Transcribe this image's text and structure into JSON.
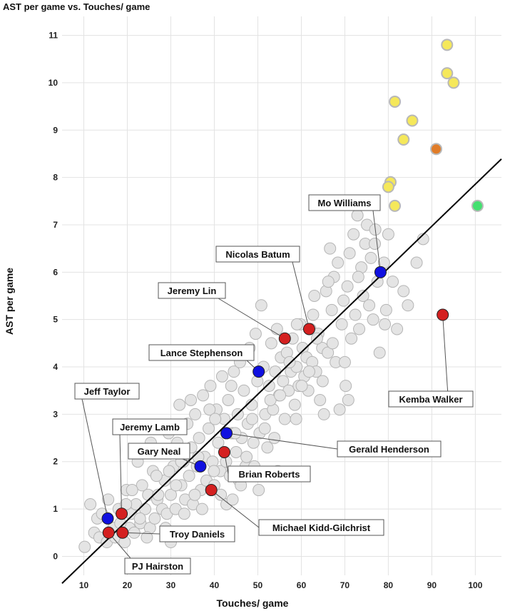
{
  "chart_data": {
    "type": "scatter",
    "title": "AST per game vs. Touches/ game",
    "xlabel": "Touches/ game",
    "ylabel": "AST per game",
    "xlim": [
      5,
      106
    ],
    "ylim": [
      -0.4,
      11.4
    ],
    "x_ticks": [
      10,
      20,
      30,
      40,
      50,
      60,
      70,
      80,
      90,
      100
    ],
    "y_ticks": [
      0,
      1,
      2,
      3,
      4,
      5,
      6,
      7,
      8,
      9,
      10,
      11
    ],
    "grid": true,
    "colors": {
      "background_points": "#e4e4e4",
      "background_stroke": "#b5b5b5",
      "blue": "#1010e0",
      "red": "#d42020",
      "yellow": "#f5e85a",
      "orange": "#e07c28",
      "green": "#44e070",
      "trend_line": "#000000"
    },
    "trend_line": {
      "from": [
        5.0,
        -0.57
      ],
      "to": [
        106.0,
        8.39
      ]
    },
    "background_points": [
      [
        10.2,
        0.2
      ],
      [
        11.5,
        1.1
      ],
      [
        12.4,
        0.5
      ],
      [
        13.1,
        0.8
      ],
      [
        13.6,
        0.4
      ],
      [
        14.2,
        0.9
      ],
      [
        15.3,
        0.3
      ],
      [
        15.6,
        1.2
      ],
      [
        16.8,
        0.6
      ],
      [
        17.2,
        0.4
      ],
      [
        18.0,
        1.0
      ],
      [
        19.4,
        0.3
      ],
      [
        19.8,
        1.4
      ],
      [
        20.5,
        0.6
      ],
      [
        20.9,
        0.9
      ],
      [
        21.6,
        0.5
      ],
      [
        22.0,
        1.1
      ],
      [
        22.4,
        2.0
      ],
      [
        23.0,
        0.7
      ],
      [
        23.4,
        1.5
      ],
      [
        24.1,
        1.0
      ],
      [
        24.8,
        1.3
      ],
      [
        25.2,
        0.6
      ],
      [
        25.9,
        1.8
      ],
      [
        26.3,
        0.8
      ],
      [
        26.9,
        1.2
      ],
      [
        27.5,
        2.2
      ],
      [
        28.0,
        1.0
      ],
      [
        28.6,
        1.6
      ],
      [
        29.1,
        0.9
      ],
      [
        29.5,
        2.6
      ],
      [
        30.0,
        1.3
      ],
      [
        30.6,
        1.9
      ],
      [
        31.1,
        1.0
      ],
      [
        31.5,
        2.4
      ],
      [
        32.0,
        3.2
      ],
      [
        32.4,
        1.5
      ],
      [
        32.9,
        2.0
      ],
      [
        33.3,
        1.2
      ],
      [
        33.8,
        2.8
      ],
      [
        34.2,
        1.7
      ],
      [
        34.7,
        2.3
      ],
      [
        35.1,
        1.1
      ],
      [
        35.6,
        3.0
      ],
      [
        36.0,
        1.9
      ],
      [
        36.5,
        2.5
      ],
      [
        36.9,
        1.4
      ],
      [
        37.4,
        3.4
      ],
      [
        37.8,
        2.1
      ],
      [
        38.2,
        1.6
      ],
      [
        38.7,
        2.7
      ],
      [
        39.1,
        3.6
      ],
      [
        39.6,
        2.0
      ],
      [
        40.0,
        1.5
      ],
      [
        40.5,
        3.1
      ],
      [
        40.9,
        2.4
      ],
      [
        41.4,
        1.8
      ],
      [
        41.8,
        3.8
      ],
      [
        42.3,
        2.9
      ],
      [
        42.7,
        2.0
      ],
      [
        43.2,
        3.3
      ],
      [
        43.6,
        1.7
      ],
      [
        44.1,
        2.6
      ],
      [
        44.5,
        3.9
      ],
      [
        45.0,
        2.2
      ],
      [
        45.4,
        3.0
      ],
      [
        45.9,
        4.1
      ],
      [
        46.3,
        2.5
      ],
      [
        46.8,
        3.5
      ],
      [
        47.2,
        1.9
      ],
      [
        47.7,
        2.8
      ],
      [
        48.1,
        4.4
      ],
      [
        48.6,
        3.2
      ],
      [
        49.0,
        2.4
      ],
      [
        49.5,
        4.7
      ],
      [
        49.9,
        3.7
      ],
      [
        50.4,
        2.6
      ],
      [
        50.8,
        5.3
      ],
      [
        51.3,
        4.0
      ],
      [
        51.7,
        3.0
      ],
      [
        52.2,
        2.3
      ],
      [
        52.6,
        3.6
      ],
      [
        53.1,
        4.5
      ],
      [
        53.5,
        3.1
      ],
      [
        54.0,
        3.9
      ],
      [
        54.4,
        4.8
      ],
      [
        54.9,
        3.4
      ],
      [
        55.3,
        4.2
      ],
      [
        55.8,
        3.7
      ],
      [
        56.2,
        2.9
      ],
      [
        56.7,
        4.3
      ],
      [
        57.1,
        3.5
      ],
      [
        57.6,
        3.9
      ],
      [
        58.0,
        4.6
      ],
      [
        58.5,
        3.2
      ],
      [
        58.9,
        4.0
      ],
      [
        59.4,
        3.6
      ],
      [
        59.8,
        4.9
      ],
      [
        60.3,
        4.4
      ],
      [
        60.7,
        3.8
      ],
      [
        61.2,
        4.2
      ],
      [
        61.6,
        3.5
      ],
      [
        62.1,
        4.8
      ],
      [
        62.5,
        4.1
      ],
      [
        63.0,
        5.5
      ],
      [
        63.4,
        3.9
      ],
      [
        63.9,
        4.7
      ],
      [
        64.3,
        3.3
      ],
      [
        64.8,
        4.4
      ],
      [
        65.2,
        3.0
      ],
      [
        65.7,
        5.6
      ],
      [
        66.1,
        4.3
      ],
      [
        66.6,
        6.5
      ],
      [
        67.0,
        5.2
      ],
      [
        67.5,
        5.9
      ],
      [
        67.9,
        4.1
      ],
      [
        68.4,
        6.2
      ],
      [
        68.8,
        3.1
      ],
      [
        69.3,
        4.9
      ],
      [
        69.7,
        5.4
      ],
      [
        70.2,
        3.6
      ],
      [
        70.6,
        5.7
      ],
      [
        71.1,
        6.4
      ],
      [
        71.5,
        4.6
      ],
      [
        72.0,
        6.8
      ],
      [
        72.4,
        5.1
      ],
      [
        72.9,
        7.2
      ],
      [
        73.3,
        4.8
      ],
      [
        73.8,
        6.1
      ],
      [
        74.2,
        5.5
      ],
      [
        74.7,
        6.6
      ],
      [
        75.1,
        7.0
      ],
      [
        75.6,
        5.3
      ],
      [
        76.0,
        6.3
      ],
      [
        76.5,
        5.0
      ],
      [
        77.0,
        6.9
      ],
      [
        77.5,
        5.8
      ],
      [
        78.0,
        4.3
      ],
      [
        79.0,
        6.2
      ],
      [
        79.5,
        5.2
      ],
      [
        80.0,
        6.8
      ],
      [
        81.0,
        5.8
      ],
      [
        82.0,
        4.8
      ],
      [
        83.5,
        5.6
      ],
      [
        84.5,
        5.3
      ],
      [
        86.5,
        6.2
      ],
      [
        88.0,
        6.7
      ],
      [
        70.8,
        3.3
      ],
      [
        64.9,
        3.7
      ],
      [
        59.0,
        4.9
      ],
      [
        21.1,
        1.4
      ],
      [
        26.7,
        1.7
      ],
      [
        31.2,
        1.5
      ],
      [
        35.5,
        1.3
      ],
      [
        39.9,
        1.8
      ],
      [
        44.8,
        2.6
      ],
      [
        48.7,
        2.9
      ],
      [
        52.9,
        3.3
      ],
      [
        57.3,
        4.1
      ],
      [
        61.8,
        3.9
      ],
      [
        24.5,
        0.4
      ],
      [
        28.8,
        0.6
      ],
      [
        33.1,
        0.9
      ],
      [
        37.2,
        1.0
      ],
      [
        41.5,
        1.3
      ],
      [
        45.7,
        1.6
      ],
      [
        49.2,
        1.9
      ],
      [
        53.8,
        2.5
      ],
      [
        30.0,
        0.3
      ],
      [
        18.4,
        0.7
      ],
      [
        34.6,
        3.3
      ],
      [
        38.9,
        3.1
      ],
      [
        43.9,
        3.6
      ],
      [
        47.4,
        2.1
      ],
      [
        51.6,
        2.7
      ],
      [
        55.1,
        3.4
      ],
      [
        60.1,
        3.6
      ],
      [
        63.6,
        4.6
      ],
      [
        67.2,
        4.5
      ],
      [
        66.2,
        5.8
      ],
      [
        58.8,
        2.9
      ],
      [
        62.7,
        5.1
      ],
      [
        70.0,
        4.1
      ],
      [
        73.1,
        5.9
      ],
      [
        76.9,
        6.6
      ],
      [
        79.2,
        4.9
      ],
      [
        32.4,
        2.0
      ],
      [
        36.3,
        2.1
      ],
      [
        40.2,
        2.9
      ],
      [
        42.8,
        1.1
      ],
      [
        27.1,
        1.3
      ],
      [
        22.9,
        0.8
      ],
      [
        19.7,
        1.1
      ],
      [
        25.4,
        2.4
      ],
      [
        29.6,
        1.8
      ],
      [
        46.1,
        1.5
      ],
      [
        50.2,
        1.4
      ],
      [
        54.6,
        1.8
      ],
      [
        38.0,
        0.5
      ],
      [
        44.2,
        1.2
      ]
    ],
    "yellow_points": [
      [
        93.5,
        10.8
      ],
      [
        93.5,
        10.2
      ],
      [
        95.0,
        10.0
      ],
      [
        81.5,
        9.6
      ],
      [
        85.5,
        9.2
      ],
      [
        83.5,
        8.8
      ],
      [
        80.5,
        7.9
      ],
      [
        80.0,
        7.8
      ],
      [
        81.5,
        7.4
      ]
    ],
    "orange_points": [
      [
        91.0,
        8.6
      ]
    ],
    "green_points": [
      [
        100.5,
        7.4
      ]
    ],
    "highlighted": [
      {
        "label": "Mo Williams",
        "x": 78.2,
        "y": 6.0,
        "color": "blue"
      },
      {
        "label": "Nicolas Batum",
        "x": 61.8,
        "y": 4.8,
        "color": "red"
      },
      {
        "label": "Jeremy Lin",
        "x": 56.2,
        "y": 4.6,
        "color": "red"
      },
      {
        "label": "Lance Stephenson",
        "x": 50.2,
        "y": 3.9,
        "color": "blue"
      },
      {
        "label": "Kemba Walker",
        "x": 92.5,
        "y": 5.1,
        "color": "red"
      },
      {
        "label": "Gerald Henderson",
        "x": 42.8,
        "y": 2.6,
        "color": "blue"
      },
      {
        "label": "Brian Roberts",
        "x": 42.3,
        "y": 2.2,
        "color": "red"
      },
      {
        "label": "Gary Neal",
        "x": 36.8,
        "y": 1.9,
        "color": "blue"
      },
      {
        "label": "Michael Kidd-Gilchrist",
        "x": 39.3,
        "y": 1.4,
        "color": "red"
      },
      {
        "label": "Jeff Taylor",
        "x": 15.5,
        "y": 0.8,
        "color": "blue"
      },
      {
        "label": "Jeremy Lamb",
        "x": 18.7,
        "y": 0.9,
        "color": "red"
      },
      {
        "label": "Troy Daniels",
        "x": 18.9,
        "y": 0.5,
        "color": "red"
      },
      {
        "label": "PJ Hairston",
        "x": 15.7,
        "y": 0.5,
        "color": "red"
      }
    ]
  }
}
